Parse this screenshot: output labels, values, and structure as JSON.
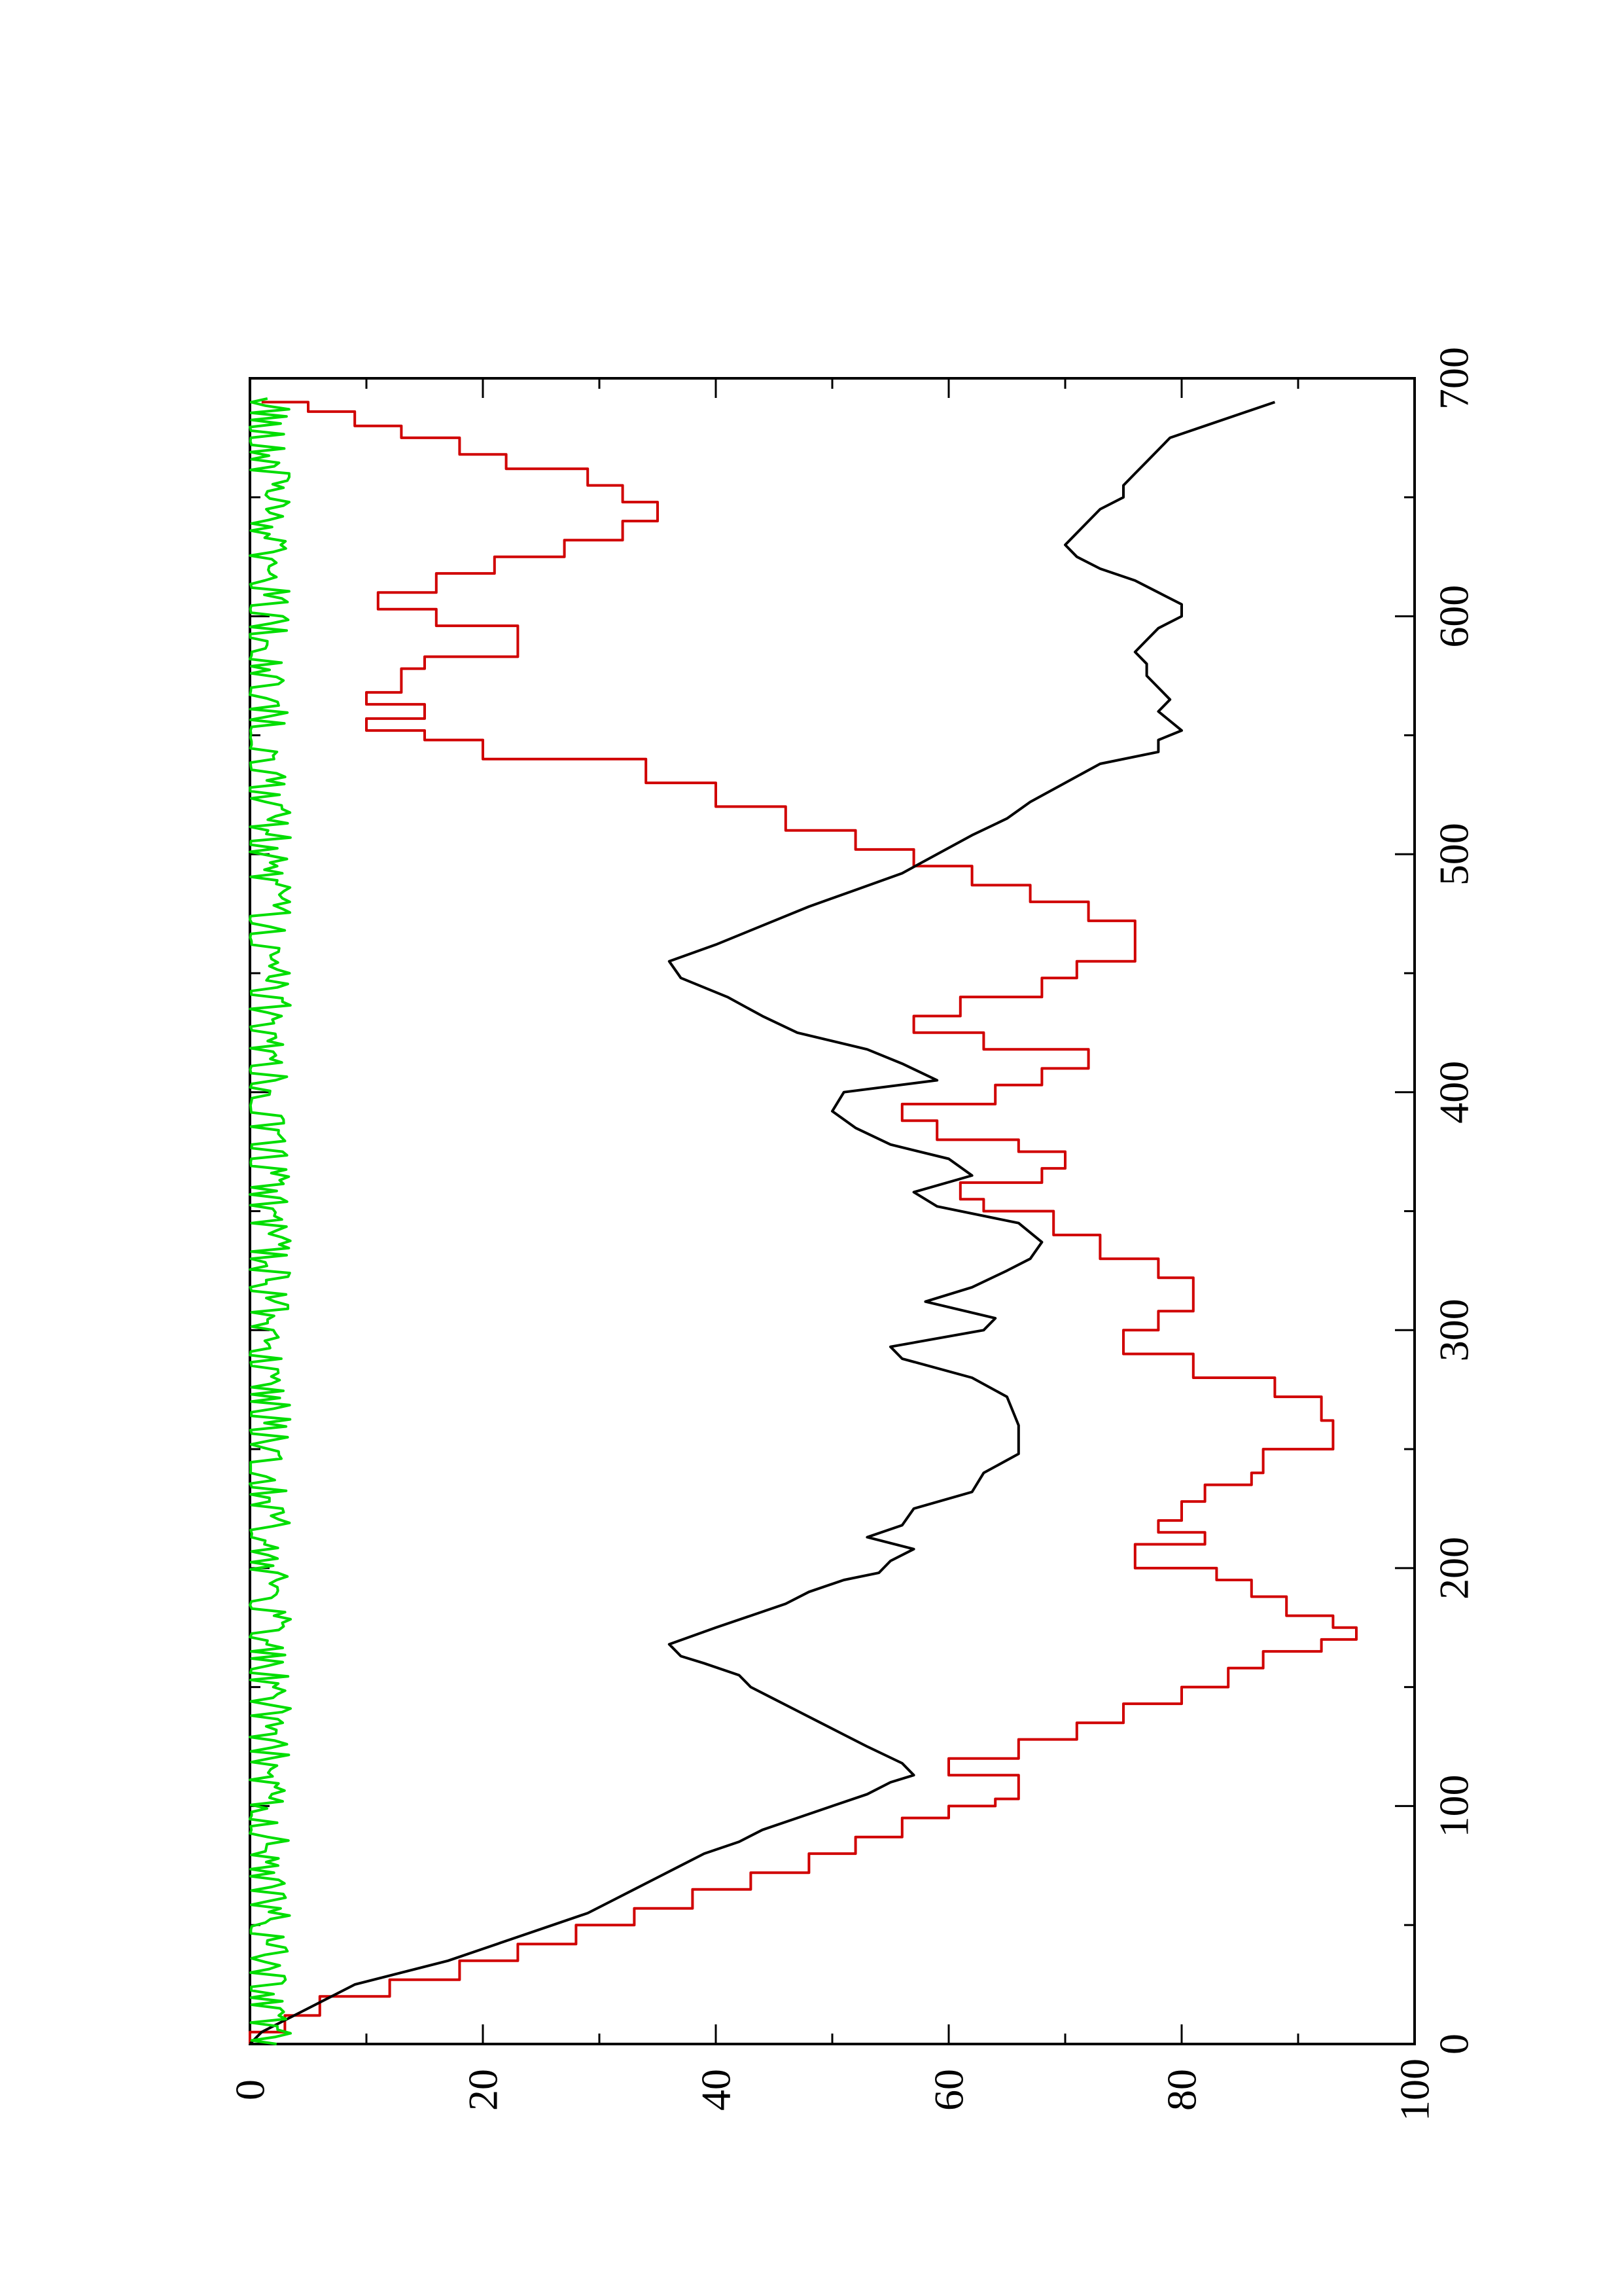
{
  "chart_data": {
    "type": "line",
    "orientation": "rotated 90 degrees counter-clockwise (x runs bottom-to-top, y runs left-to-right)",
    "title": "",
    "xlabel": "",
    "ylabel": "",
    "xlim": [
      0,
      700
    ],
    "ylim": [
      0,
      100
    ],
    "x_ticks": [
      0,
      100,
      200,
      300,
      400,
      500,
      600,
      700
    ],
    "x_tick_labels": [
      "0",
      "100",
      "200",
      "300",
      "400",
      "500",
      "600",
      "700"
    ],
    "y_ticks": [
      0,
      20,
      40,
      60,
      80,
      100
    ],
    "y_tick_labels": [
      "0",
      "20",
      "40",
      "60",
      "80",
      "100"
    ],
    "grid": false,
    "legend": "none",
    "series": [
      {
        "color": "#d00000",
        "style": "step",
        "x": [
          0,
          5,
          12,
          20,
          27,
          35,
          42,
          50,
          57,
          65,
          72,
          80,
          87,
          95,
          100,
          103,
          108,
          113,
          120,
          128,
          135,
          143,
          150,
          158,
          165,
          170,
          175,
          180,
          188,
          195,
          200,
          205,
          210,
          215,
          220,
          228,
          235,
          240,
          250,
          262,
          272,
          280,
          290,
          300,
          308,
          315,
          322,
          330,
          340,
          350,
          355,
          362,
          368,
          375,
          380,
          388,
          395,
          403,
          410,
          418,
          425,
          432,
          440,
          448,
          455,
          465,
          472,
          480,
          487,
          495,
          502,
          510,
          520,
          530,
          540,
          548,
          552,
          557,
          563,
          568,
          572,
          578,
          583,
          588,
          596,
          603,
          610,
          618,
          625,
          632,
          640,
          648,
          655,
          662,
          668,
          675,
          680,
          686,
          690
        ],
        "y": [
          0,
          3,
          6,
          12,
          18,
          23,
          28,
          33,
          38,
          43,
          48,
          52,
          56,
          60,
          64,
          66,
          66,
          60,
          66,
          71,
          75,
          80,
          84,
          87,
          92,
          95,
          93,
          89,
          86,
          83,
          76,
          76,
          82,
          78,
          80,
          82,
          86,
          87,
          93,
          92,
          88,
          81,
          75,
          78,
          81,
          81,
          78,
          73,
          69,
          63,
          61,
          68,
          70,
          66,
          59,
          56,
          64,
          68,
          72,
          63,
          57,
          61,
          68,
          71,
          76,
          76,
          72,
          67,
          62,
          57,
          52,
          46,
          40,
          34,
          20,
          15,
          10,
          15,
          10,
          13,
          13,
          15,
          23,
          23,
          16,
          11,
          16,
          21,
          27,
          32,
          35,
          32,
          29,
          22,
          18,
          13,
          9,
          5,
          1
        ]
      },
      {
        "color": "#000000",
        "style": "line",
        "x": [
          0,
          5,
          10,
          15,
          20,
          25,
          30,
          35,
          40,
          45,
          50,
          55,
          60,
          65,
          70,
          75,
          80,
          85,
          90,
          95,
          100,
          105,
          110,
          113,
          118,
          125,
          130,
          135,
          140,
          145,
          150,
          155,
          160,
          163,
          168,
          175,
          180,
          185,
          190,
          195,
          198,
          203,
          208,
          213,
          218,
          225,
          232,
          240,
          248,
          260,
          272,
          280,
          288,
          293,
          300,
          305,
          312,
          318,
          325,
          330,
          337,
          345,
          352,
          358,
          365,
          372,
          378,
          385,
          392,
          400,
          405,
          412,
          418,
          425,
          432,
          440,
          448,
          455,
          462,
          470,
          478,
          485,
          492,
          500,
          508,
          515,
          522,
          530,
          538,
          543,
          548,
          552,
          556,
          560,
          565,
          570,
          575,
          580,
          585,
          590,
          595,
          600,
          605,
          610,
          615,
          620,
          625,
          630,
          635,
          640,
          645,
          650,
          655,
          660,
          665,
          670,
          675,
          680,
          685,
          690
        ],
        "y": [
          0,
          1,
          3,
          5,
          7,
          9,
          13,
          17,
          20,
          23,
          26,
          29,
          31,
          33,
          35,
          37,
          39,
          42,
          44,
          47,
          50,
          53,
          55,
          57,
          56,
          53,
          51,
          49,
          47,
          45,
          43,
          42,
          39,
          37,
          36,
          40,
          43,
          46,
          48,
          51,
          54,
          55,
          57,
          53,
          56,
          57,
          62,
          63,
          66,
          66,
          65,
          62,
          56,
          55,
          63,
          64,
          58,
          62,
          65,
          67,
          68,
          66,
          59,
          57,
          62,
          60,
          55,
          52,
          50,
          51,
          59,
          56,
          53,
          47,
          44,
          41,
          37,
          36,
          40,
          44,
          48,
          52,
          56,
          59,
          62,
          65,
          67,
          70,
          73,
          78,
          78,
          80,
          79,
          78,
          79,
          78,
          77,
          77,
          76,
          77,
          78,
          80,
          80,
          78,
          76,
          73,
          71,
          70,
          71,
          72,
          73,
          75,
          75,
          76,
          77,
          78,
          79,
          82,
          85,
          88
        ]
      },
      {
        "color": "#00dd00",
        "style": "line",
        "noise_band": [
          0,
          3.5
        ]
      }
    ]
  }
}
